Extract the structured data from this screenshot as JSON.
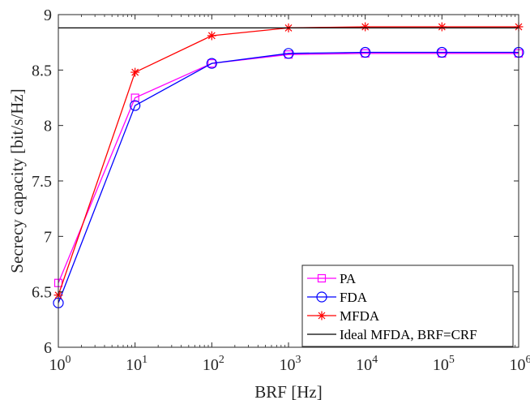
{
  "chart_data": {
    "type": "line",
    "xlabel": "BRF [Hz]",
    "ylabel": "Secrecy capacity [bit/s/Hz]",
    "x_scale": "log",
    "x": [
      1,
      10,
      100,
      1000,
      10000,
      100000,
      1000000
    ],
    "x_tick_labels": [
      {
        "base": "10",
        "exp": "0"
      },
      {
        "base": "10",
        "exp": "1"
      },
      {
        "base": "10",
        "exp": "2"
      },
      {
        "base": "10",
        "exp": "3"
      },
      {
        "base": "10",
        "exp": "4"
      },
      {
        "base": "10",
        "exp": "5"
      },
      {
        "base": "10",
        "exp": "6"
      }
    ],
    "y_ticks": [
      "6",
      "6.5",
      "7",
      "7.5",
      "8",
      "8.5",
      "9"
    ],
    "xlim": [
      1,
      1000000
    ],
    "ylim": [
      6,
      9
    ],
    "grid": false,
    "legend_position": "bottom-right",
    "series": [
      {
        "name": "PA",
        "color": "#ff00ff",
        "marker": "square",
        "values": [
          6.58,
          8.25,
          8.56,
          8.64,
          8.65,
          8.65,
          8.65
        ]
      },
      {
        "name": "FDA",
        "color": "#0000ff",
        "marker": "circle",
        "values": [
          6.4,
          8.18,
          8.56,
          8.65,
          8.66,
          8.66,
          8.66
        ]
      },
      {
        "name": "MFDA",
        "color": "#ff0000",
        "marker": "star",
        "values": [
          6.47,
          8.48,
          8.81,
          8.88,
          8.89,
          8.89,
          8.89
        ]
      },
      {
        "name": "Ideal MFDA, BRF=CRF",
        "color": "#000000",
        "marker": "none",
        "values": [
          8.88,
          8.88,
          8.88,
          8.88,
          8.88,
          8.88,
          8.88
        ]
      }
    ]
  }
}
